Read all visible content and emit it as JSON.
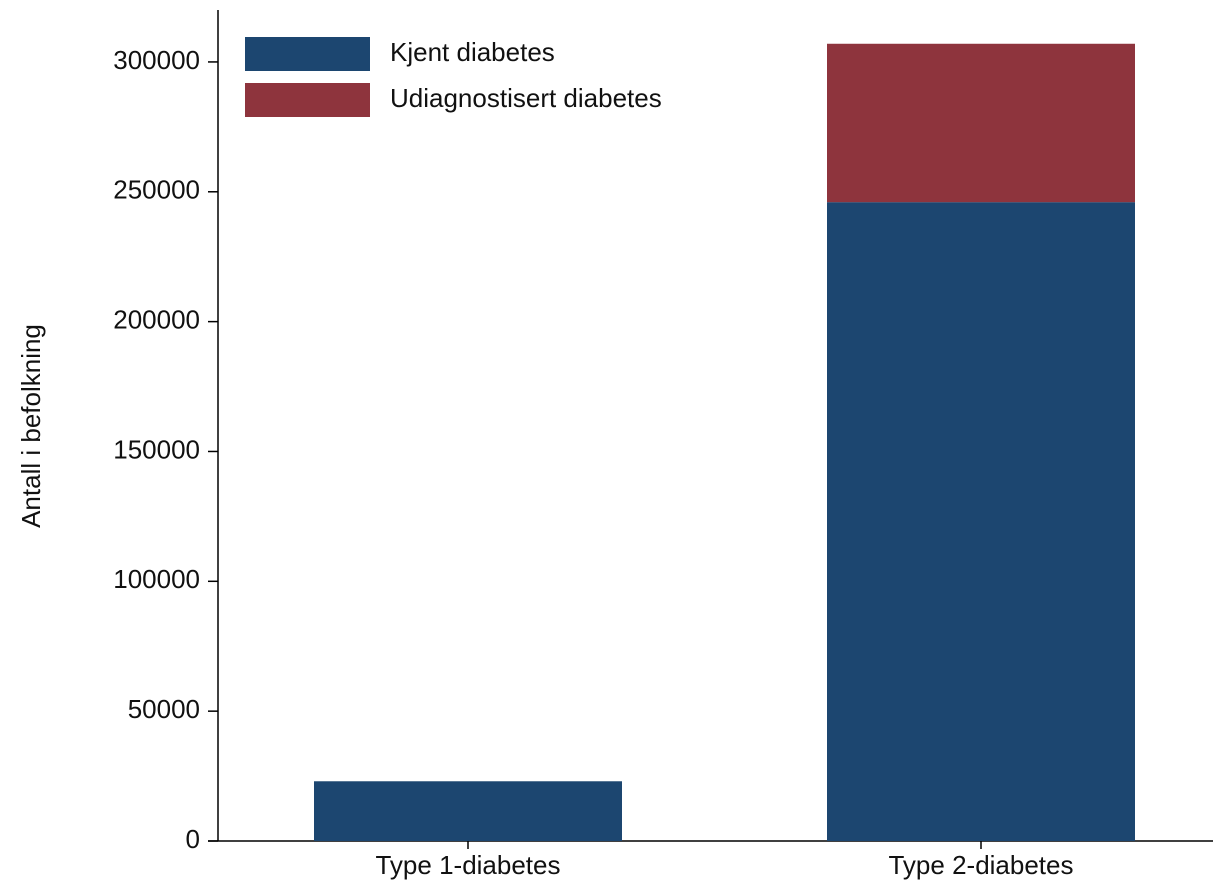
{
  "chart_data": {
    "type": "stacked_bar",
    "y_label": "Antall i befolkning",
    "categories": [
      "Type 1-diabetes",
      "Type 2-diabetes"
    ],
    "series": [
      {
        "name": "Kjent diabetes",
        "color": "#1c4670",
        "values": [
          23000,
          246000
        ]
      },
      {
        "name": "Udiagnostisert diabetes",
        "color": "#8e343d",
        "values": [
          0,
          61000
        ]
      }
    ],
    "ylim": [
      0,
      320000
    ],
    "yticks": [
      0,
      50000,
      100000,
      150000,
      200000,
      250000,
      300000
    ],
    "legend": "top-left"
  }
}
